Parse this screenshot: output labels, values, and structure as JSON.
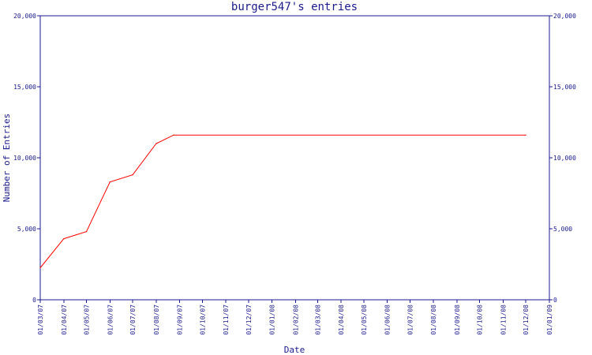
{
  "chart_data": {
    "type": "line",
    "title": "burger547's entries",
    "xlabel": "Date",
    "ylabel": "Number of Entries",
    "ylim": [
      0,
      20000
    ],
    "y_ticks": [
      "0",
      "5,000",
      "10,000",
      "15,000",
      "20,000"
    ],
    "y_tick_values": [
      0,
      5000,
      10000,
      15000,
      20000
    ],
    "x_ticks": [
      "01/03/07",
      "01/04/07",
      "01/05/07",
      "01/06/07",
      "01/07/07",
      "01/08/07",
      "01/09/07",
      "01/10/07",
      "01/11/07",
      "01/12/07",
      "01/01/08",
      "01/02/08",
      "01/03/08",
      "01/04/08",
      "01/05/08",
      "01/06/08",
      "01/07/08",
      "01/08/08",
      "01/09/08",
      "01/10/08",
      "01/11/08",
      "01/12/08",
      "01/01/09"
    ],
    "x_range": [
      "2007-03-01",
      "2009-01-01"
    ],
    "grid": false,
    "series": [
      {
        "color": "#ff0000",
        "points": [
          {
            "x": "2007-03-01",
            "y": 2250
          },
          {
            "x": "2007-04-01",
            "y": 4300
          },
          {
            "x": "2007-05-01",
            "y": 4800
          },
          {
            "x": "2007-06-01",
            "y": 8300
          },
          {
            "x": "2007-07-01",
            "y": 8800
          },
          {
            "x": "2007-08-01",
            "y": 11000
          },
          {
            "x": "2007-08-24",
            "y": 11600
          },
          {
            "x": "2008-12-01",
            "y": 11600
          }
        ]
      }
    ],
    "colors": {
      "axis": "#1a1a8c",
      "text": "#1a1a8c",
      "line": "#ff0000"
    }
  }
}
